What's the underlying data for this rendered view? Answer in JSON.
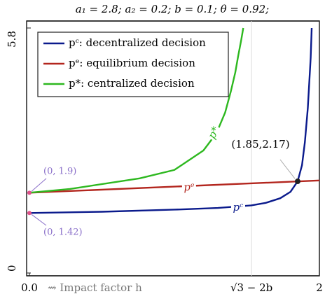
{
  "chart_data": {
    "type": "line",
    "title": "a₁ = 2.8; a₂ = 0.2; b = 0.1; θ = 0.92;",
    "x_label": "⇝ Impact factor h",
    "xlim": [
      0,
      2
    ],
    "ylim": [
      0,
      5.8
    ],
    "xticks": [
      {
        "value": 0,
        "label": "0.0"
      },
      {
        "value": 1.532,
        "label": "√3 − 2b"
      },
      2
    ],
    "yticks": [
      0,
      5.8
    ],
    "legend_position": "upper left",
    "series": [
      {
        "name": "pᶜ: decentralized decision",
        "short": "pᶜ",
        "color": "#0a1a8c",
        "x": [
          0,
          0.5,
          1.0,
          1.3,
          1.53,
          1.63,
          1.73,
          1.8,
          1.85,
          1.88,
          1.9,
          1.92,
          1.93,
          1.94,
          1.947
        ],
        "values": [
          1.42,
          1.45,
          1.5,
          1.54,
          1.6,
          1.66,
          1.77,
          1.92,
          2.17,
          2.55,
          3.1,
          3.9,
          4.5,
          5.1,
          5.8
        ]
      },
      {
        "name": "pᵉ: equilibrium decision",
        "short": "pᵉ",
        "color": "#b3261e",
        "x": [
          0,
          2
        ],
        "values": [
          1.9,
          2.19
        ]
      },
      {
        "name": "p*: centralized decision",
        "short": "p*",
        "color": "#2db81f",
        "x": [
          0,
          0.28,
          0.76,
          1.0,
          1.2,
          1.29,
          1.35,
          1.39,
          1.42,
          1.44,
          1.46,
          1.475
        ],
        "values": [
          1.9,
          1.99,
          2.24,
          2.44,
          2.9,
          3.31,
          3.8,
          4.31,
          4.75,
          5.14,
          5.5,
          5.8
        ]
      }
    ],
    "annotations": [
      {
        "text": "(0, 1.9)",
        "x": 0,
        "y": 1.9
      },
      {
        "text": "(0, 1.42)",
        "x": 0,
        "y": 1.42
      },
      {
        "text": "(1.85,2.17)",
        "x": 1.85,
        "y": 2.17
      }
    ]
  }
}
